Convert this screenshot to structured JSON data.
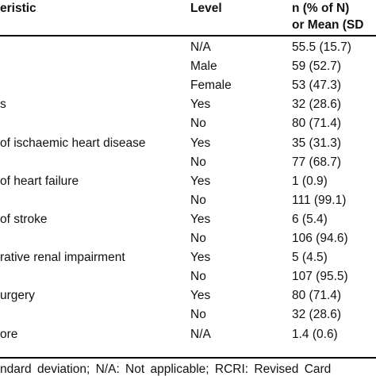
{
  "table": {
    "headers": {
      "characteristic": "eristic",
      "level": "Level",
      "value_line1": "n (% of N)",
      "value_line2": "or Mean (SD"
    },
    "rows": [
      {
        "characteristic": "",
        "level": "N/A",
        "value": "55.5 (15.7)"
      },
      {
        "characteristic": "",
        "level": "Male",
        "value": "59 (52.7)"
      },
      {
        "characteristic": "",
        "level": "Female",
        "value": "53 (47.3)"
      },
      {
        "characteristic": "s",
        "level": "Yes",
        "value": "32 (28.6)"
      },
      {
        "characteristic": "",
        "level": "No",
        "value": "80 (71.4)"
      },
      {
        "characteristic": "of ischaemic heart disease",
        "level": "Yes",
        "value": "35 (31.3)"
      },
      {
        "characteristic": "",
        "level": "No",
        "value": "77 (68.7)"
      },
      {
        "characteristic": "of heart failure",
        "level": "Yes",
        "value": "1 (0.9)"
      },
      {
        "characteristic": "",
        "level": "No",
        "value": "111 (99.1)"
      },
      {
        "characteristic": "of stroke",
        "level": "Yes",
        "value": "6 (5.4)"
      },
      {
        "characteristic": "",
        "level": "No",
        "value": "106 (94.6)"
      },
      {
        "characteristic": "rative renal impairment",
        "level": "Yes",
        "value": "5 (4.5)"
      },
      {
        "characteristic": "",
        "level": "No",
        "value": "107 (95.5)"
      },
      {
        "characteristic": "urgery",
        "level": "Yes",
        "value": "80 (71.4)"
      },
      {
        "characteristic": "",
        "level": "No",
        "value": "32 (28.6)"
      },
      {
        "characteristic": "ore",
        "level": "N/A",
        "value": "1.4 (0.6)"
      }
    ]
  },
  "footnote": "ndard deviation; N/A: Not applicable; RCRI: Revised Card"
}
